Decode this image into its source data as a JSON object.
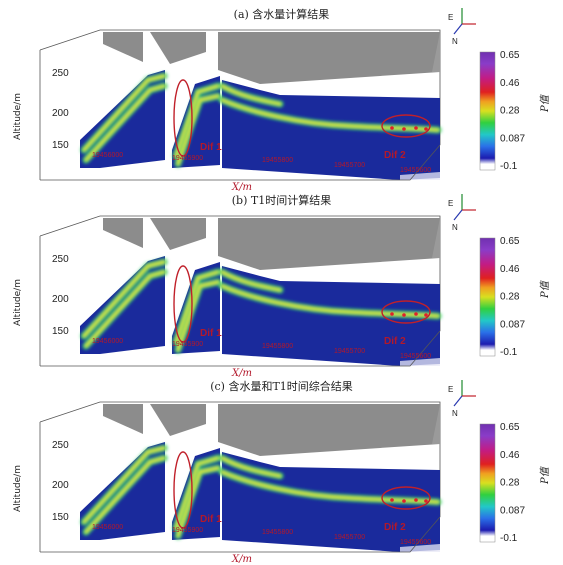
{
  "panels": [
    {
      "title": "(a) 含水量计算结果"
    },
    {
      "title": "(b) T1时间计算结果"
    },
    {
      "title": "(c) 含水量和T1时间综合结果"
    }
  ],
  "chart_data": [
    {
      "type": "heatmap",
      "title": "(a) 含水量计算结果",
      "xlabel": "X/m",
      "ylabel": "Altitude/m",
      "zlabel": "P值",
      "x_ticks": [
        "19456000",
        "19455900",
        "19455800",
        "19455700",
        "19455600"
      ],
      "y_ticks": [
        250,
        200,
        150
      ],
      "colorbar_ticks": [
        0.65,
        0.46,
        0.28,
        0.087,
        -0.1
      ],
      "colorbar_range": [
        -0.1,
        0.65
      ],
      "annotations": [
        "Dif 1",
        "Dif 2"
      ],
      "compass": [
        "E",
        "N"
      ]
    },
    {
      "type": "heatmap",
      "title": "(b) T1时间计算结果",
      "xlabel": "X/m",
      "ylabel": "Altitude/m",
      "zlabel": "P值",
      "x_ticks": [
        "19456000",
        "19455900",
        "19455800",
        "19455700",
        "19455600"
      ],
      "y_ticks": [
        250,
        200,
        150
      ],
      "colorbar_ticks": [
        0.65,
        0.46,
        0.28,
        0.087,
        -0.1
      ],
      "colorbar_range": [
        -0.1,
        0.65
      ],
      "annotations": [
        "Dif 1",
        "Dif 2"
      ],
      "compass": [
        "E",
        "N"
      ]
    },
    {
      "type": "heatmap",
      "title": "(c) 含水量和T1时间综合结果",
      "xlabel": "X/m",
      "ylabel": "Altitude/m",
      "zlabel": "P值",
      "x_ticks": [
        "19456000",
        "19455900",
        "19455800",
        "19455700",
        "19455600"
      ],
      "y_ticks": [
        250,
        200,
        150
      ],
      "colorbar_ticks": [
        0.65,
        0.46,
        0.28,
        0.087,
        -0.1
      ],
      "colorbar_range": [
        -0.1,
        0.65
      ],
      "annotations": [
        "Dif 1",
        "Dif 2"
      ],
      "compass": [
        "E",
        "N"
      ]
    }
  ],
  "colors": {
    "background_value": "#1a2a9c",
    "anomaly_mid": "#2fd16a",
    "anomaly_core": "#f2e22a",
    "highlight": "#e0202a",
    "ellipse": "#c0202a",
    "dif_label": "#b2182b",
    "tick_red": "#b2182b",
    "roof_gray": "#8c8c8c"
  }
}
